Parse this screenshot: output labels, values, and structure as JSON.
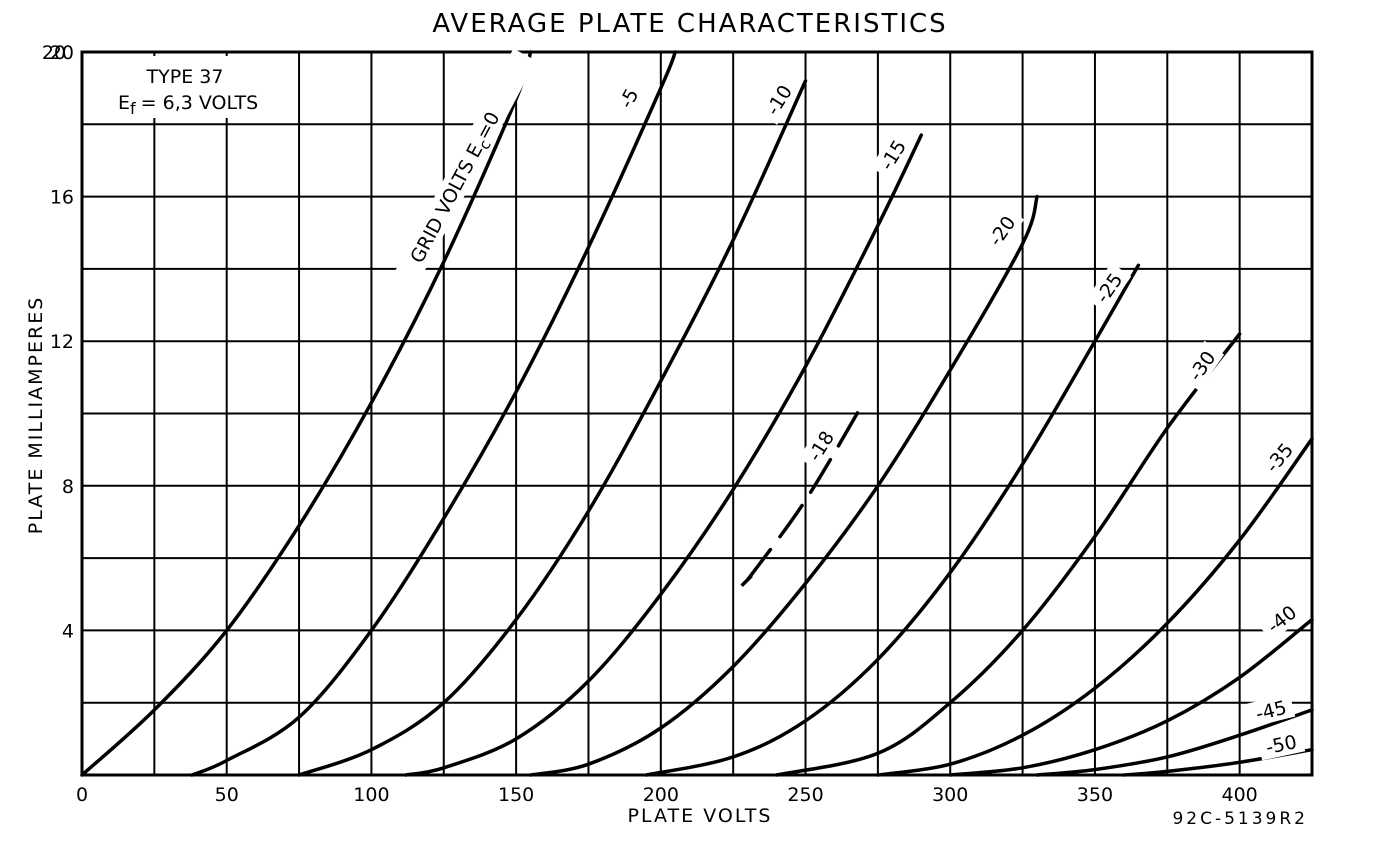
{
  "chart_data": {
    "type": "line",
    "title": "AVERAGE PLATE CHARACTERISTICS",
    "xlabel": "PLATE VOLTS",
    "ylabel": "PLATE MILLIAMPERES",
    "xlim": [
      0,
      425
    ],
    "ylim": [
      0,
      20
    ],
    "x_tick_labels": [
      "0",
      "50",
      "100",
      "150",
      "200",
      "250",
      "300",
      "350",
      "400"
    ],
    "y_tick_labels": [
      "4",
      "8",
      "12",
      "16",
      "20"
    ],
    "x_minor_step": 25,
    "y_minor_step": 2,
    "grid": true,
    "annotation_lines": [
      "TYPE 37",
      "E_f = 6.3 VOLTS"
    ],
    "annotation_display": {
      "line1": "TYPE 37",
      "ef_prefix": "E",
      "ef_sub": "f",
      "ef_rest": "= 6,3 VOLTS"
    },
    "curve_prefix": "GRID VOLTS E",
    "curve_prefix_sub": "c",
    "figure_code": "92C-5139R2",
    "series": [
      {
        "name": "Ec=0",
        "label": "=0",
        "style": "solid",
        "points": [
          [
            0,
            0
          ],
          [
            25,
            1.8
          ],
          [
            50,
            4.0
          ],
          [
            75,
            6.9
          ],
          [
            100,
            10.3
          ],
          [
            125,
            14.2
          ],
          [
            150,
            18.7
          ],
          [
            155,
            20
          ]
        ]
      },
      {
        "name": "Ec=-5",
        "label": "-5",
        "style": "solid",
        "points": [
          [
            38,
            0
          ],
          [
            50,
            0.4
          ],
          [
            75,
            1.6
          ],
          [
            100,
            4.0
          ],
          [
            125,
            7.1
          ],
          [
            150,
            10.6
          ],
          [
            175,
            14.6
          ],
          [
            200,
            19.0
          ],
          [
            205,
            20
          ]
        ]
      },
      {
        "name": "Ec=-10",
        "label": "-10",
        "style": "solid",
        "points": [
          [
            75,
            0
          ],
          [
            100,
            0.7
          ],
          [
            125,
            2.0
          ],
          [
            150,
            4.3
          ],
          [
            175,
            7.3
          ],
          [
            200,
            10.9
          ],
          [
            225,
            14.8
          ],
          [
            250,
            19.2
          ]
        ]
      },
      {
        "name": "Ec=-15",
        "label": "-15",
        "style": "solid",
        "points": [
          [
            112,
            0
          ],
          [
            125,
            0.2
          ],
          [
            150,
            1.0
          ],
          [
            175,
            2.6
          ],
          [
            200,
            5.0
          ],
          [
            225,
            7.9
          ],
          [
            250,
            11.3
          ],
          [
            275,
            15.2
          ],
          [
            290,
            17.7
          ]
        ]
      },
      {
        "name": "Ec=-18",
        "label": "-18",
        "style": "dashed",
        "points": [
          [
            230,
            5.4
          ],
          [
            250,
            7.6
          ],
          [
            270,
            10.3
          ]
        ]
      },
      {
        "name": "Ec=-20",
        "label": "-20",
        "style": "solid",
        "points": [
          [
            155,
            0
          ],
          [
            175,
            0.3
          ],
          [
            200,
            1.3
          ],
          [
            225,
            3.0
          ],
          [
            250,
            5.3
          ],
          [
            275,
            8.0
          ],
          [
            300,
            11.2
          ],
          [
            325,
            14.7
          ],
          [
            330,
            16.0
          ]
        ]
      },
      {
        "name": "Ec=-25",
        "label": "-25",
        "style": "solid",
        "points": [
          [
            195,
            0
          ],
          [
            225,
            0.5
          ],
          [
            250,
            1.5
          ],
          [
            275,
            3.2
          ],
          [
            300,
            5.6
          ],
          [
            325,
            8.6
          ],
          [
            350,
            12.0
          ],
          [
            365,
            14.1
          ]
        ]
      },
      {
        "name": "Ec=-30",
        "label": "-30",
        "style": "solid",
        "points": [
          [
            240,
            0
          ],
          [
            275,
            0.6
          ],
          [
            300,
            2.0
          ],
          [
            325,
            4.0
          ],
          [
            350,
            6.6
          ],
          [
            375,
            9.6
          ],
          [
            400,
            12.2
          ]
        ]
      },
      {
        "name": "Ec=-35",
        "label": "-35",
        "style": "solid",
        "points": [
          [
            275,
            0
          ],
          [
            300,
            0.3
          ],
          [
            325,
            1.1
          ],
          [
            350,
            2.4
          ],
          [
            375,
            4.2
          ],
          [
            400,
            6.5
          ],
          [
            425,
            9.3
          ]
        ]
      },
      {
        "name": "Ec=-40",
        "label": "-40",
        "style": "solid",
        "points": [
          [
            300,
            0
          ],
          [
            325,
            0.2
          ],
          [
            350,
            0.7
          ],
          [
            375,
            1.5
          ],
          [
            400,
            2.7
          ],
          [
            425,
            4.3
          ]
        ]
      },
      {
        "name": "Ec=-45",
        "label": "-45",
        "style": "solid",
        "points": [
          [
            330,
            0
          ],
          [
            350,
            0.15
          ],
          [
            375,
            0.5
          ],
          [
            400,
            1.1
          ],
          [
            425,
            1.8
          ]
        ]
      },
      {
        "name": "Ec=-50",
        "label": "-50",
        "style": "solid",
        "points": [
          [
            360,
            0
          ],
          [
            375,
            0.1
          ],
          [
            400,
            0.35
          ],
          [
            425,
            0.7
          ]
        ]
      }
    ]
  }
}
